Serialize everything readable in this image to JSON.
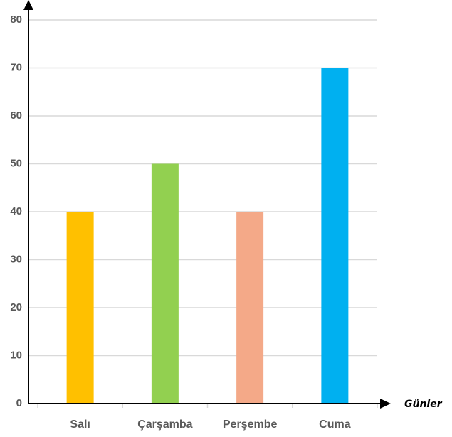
{
  "chart_data": {
    "type": "bar",
    "categories": [
      "Salı",
      "Çarşamba",
      "Perşembe",
      "Cuma"
    ],
    "values": [
      40,
      50,
      40,
      70
    ],
    "bar_colors": [
      "#FFC000",
      "#92D050",
      "#F4A988",
      "#00B0F0"
    ],
    "xlabel": "Günler",
    "ylabel": "",
    "ylim": [
      0,
      80
    ],
    "yticks": [
      0,
      10,
      20,
      30,
      40,
      50,
      60,
      70,
      80
    ],
    "grid": true,
    "axis_color": "#000000",
    "grid_color": "#d9d9d9"
  }
}
